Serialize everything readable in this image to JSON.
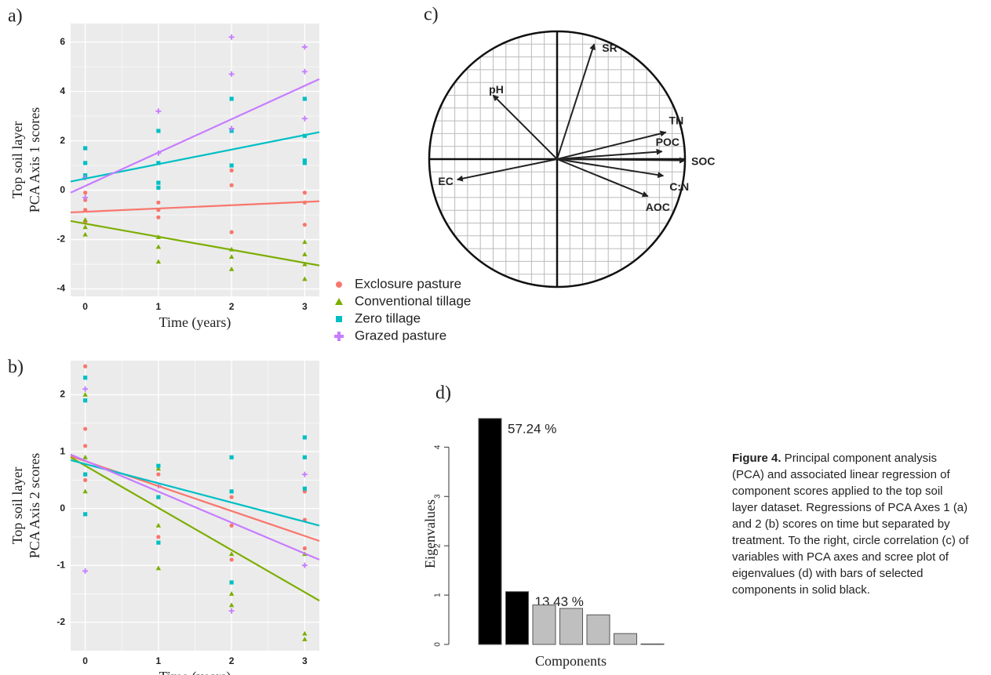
{
  "chart_data": [
    {
      "type": "scatter",
      "label": "a)",
      "ylabel": [
        "Top soil layer",
        "PCA Axis 1 scores"
      ],
      "xlabel": "Time (years)",
      "xlim": [
        -0.2,
        3.2
      ],
      "ylim": [
        -4.3,
        6.75
      ],
      "xticks": [
        0,
        1,
        2,
        3
      ],
      "yticks": [
        -4,
        -2,
        0,
        2,
        4,
        6
      ],
      "grid": true,
      "legend": "below-right",
      "series": [
        {
          "name": "Exclosure pasture",
          "color": "#F8766D",
          "marker": "circle",
          "x": [
            0,
            0,
            0,
            0,
            1,
            1,
            1,
            2,
            2,
            2,
            3,
            3,
            3
          ],
          "values": [
            -0.1,
            -0.4,
            -0.8,
            -1.3,
            -0.5,
            -0.8,
            -1.1,
            0.8,
            0.2,
            -1.7,
            -0.1,
            -0.5,
            -1.4
          ],
          "fit": [
            -0.9,
            -0.45
          ]
        },
        {
          "name": "Conventional tillage",
          "color": "#7CAE00",
          "marker": "triangle",
          "x": [
            0,
            0,
            0,
            1,
            1,
            1,
            2,
            2,
            2,
            3,
            3,
            3,
            3
          ],
          "values": [
            -1.2,
            -1.5,
            -1.8,
            -1.9,
            -2.3,
            -2.9,
            -2.4,
            -2.7,
            -3.2,
            -2.1,
            -2.6,
            -3.0,
            -3.6
          ],
          "fit": [
            -1.25,
            -3.05
          ]
        },
        {
          "name": "Zero tillage",
          "color": "#00BFC4",
          "marker": "square",
          "x": [
            0,
            0,
            0,
            1,
            1,
            1,
            1,
            2,
            2,
            2,
            3,
            3,
            3,
            3
          ],
          "values": [
            1.7,
            1.1,
            0.6,
            2.4,
            1.1,
            0.3,
            0.1,
            3.7,
            2.4,
            1.0,
            3.7,
            2.2,
            1.2,
            1.1
          ],
          "fit": [
            0.35,
            2.35
          ]
        },
        {
          "name": "Grazed pasture",
          "color": "#C77CFF",
          "marker": "plus",
          "x": [
            0,
            0,
            1,
            1,
            2,
            2,
            2,
            3,
            3,
            3
          ],
          "values": [
            0.5,
            -0.3,
            3.2,
            1.5,
            6.2,
            4.7,
            2.5,
            5.8,
            4.8,
            2.9
          ],
          "fit": [
            -0.1,
            4.5
          ]
        }
      ]
    },
    {
      "type": "scatter",
      "label": "b)",
      "ylabel": [
        "Top soil layer",
        "PCA Axis 2 scores"
      ],
      "xlabel": "Time (years)",
      "xlim": [
        -0.2,
        3.2
      ],
      "ylim": [
        -2.5,
        2.6
      ],
      "xticks": [
        0,
        1,
        2,
        3
      ],
      "yticks": [
        -2,
        -1,
        0,
        1,
        2
      ],
      "grid": true,
      "series": [
        {
          "color": "#F8766D",
          "marker": "circle",
          "x": [
            0,
            0,
            0,
            0,
            1,
            1,
            1,
            2,
            2,
            2,
            3,
            3,
            3
          ],
          "values": [
            2.5,
            1.4,
            1.1,
            0.5,
            0.6,
            0.2,
            -0.5,
            0.2,
            -0.3,
            -0.9,
            0.3,
            -0.2,
            -0.7
          ],
          "fit": [
            0.92,
            -0.57
          ]
        },
        {
          "color": "#7CAE00",
          "marker": "triangle",
          "x": [
            0,
            0,
            0,
            1,
            1,
            1,
            2,
            2,
            2,
            3,
            3,
            3
          ],
          "values": [
            2.0,
            0.9,
            0.3,
            0.7,
            -0.3,
            -1.05,
            -0.8,
            -1.5,
            -1.7,
            -0.8,
            -2.2,
            -2.3
          ],
          "fit": [
            0.9,
            -1.62
          ]
        },
        {
          "color": "#00BFC4",
          "marker": "square",
          "x": [
            0,
            0,
            0,
            0,
            1,
            1,
            1,
            2,
            2,
            2,
            3,
            3,
            3
          ],
          "values": [
            2.3,
            1.9,
            0.6,
            -0.1,
            0.75,
            0.2,
            -0.6,
            0.9,
            0.3,
            -1.3,
            1.25,
            0.9,
            0.35
          ],
          "fit": [
            0.85,
            -0.3
          ]
        },
        {
          "color": "#C77CFF",
          "marker": "plus",
          "x": [
            0,
            0,
            1,
            2,
            3,
            3
          ],
          "values": [
            2.1,
            -1.1,
            0.4,
            -1.8,
            0.6,
            -1.0
          ],
          "fit": [
            0.95,
            -0.9
          ]
        }
      ]
    },
    {
      "type": "correlation-circle",
      "label": "c)",
      "xlim": [
        -1,
        1
      ],
      "ylim": [
        -1,
        1
      ],
      "grid": true,
      "vectors": [
        {
          "name": "SR",
          "x": 0.29,
          "y": 0.9
        },
        {
          "name": "pH",
          "x": -0.5,
          "y": 0.5
        },
        {
          "name": "TN",
          "x": 0.85,
          "y": 0.21
        },
        {
          "name": "POC",
          "x": 0.82,
          "y": 0.06
        },
        {
          "name": "SOC",
          "x": 1.0,
          "y": -0.01
        },
        {
          "name": "C:N",
          "x": 0.83,
          "y": -0.13
        },
        {
          "name": "AOC",
          "x": 0.71,
          "y": -0.29
        },
        {
          "name": "EC",
          "x": -0.78,
          "y": -0.16
        }
      ]
    },
    {
      "type": "bar",
      "label": "d)",
      "ylabel": "Eigenvalues",
      "xlabel": "Components",
      "categories": [
        null,
        null,
        null,
        null,
        null,
        null,
        null
      ],
      "values": [
        4.58,
        1.07,
        0.8,
        0.73,
        0.6,
        0.22,
        0.01
      ],
      "colors": [
        "#000000",
        "#000000",
        "#bfbfbf",
        "#bfbfbf",
        "#bfbfbf",
        "#bfbfbf",
        "#bfbfbf"
      ],
      "annotations": [
        "57.24 %",
        "13.43 %"
      ],
      "ylim": [
        0,
        4.8
      ],
      "yticks": [
        0,
        1,
        2,
        3,
        4
      ]
    }
  ],
  "caption": {
    "label": "Figure 4.",
    "text": " Principal component analysis (PCA) and associated linear regression of component scores applied to the top soil layer dataset. Regressions of PCA Axes 1 (a) and 2 (b) scores on time but separated by treatment. To the right, circle correlation (c) of variables with PCA axes and scree plot of eigenvalues (d) with bars of selected components in solid black."
  }
}
